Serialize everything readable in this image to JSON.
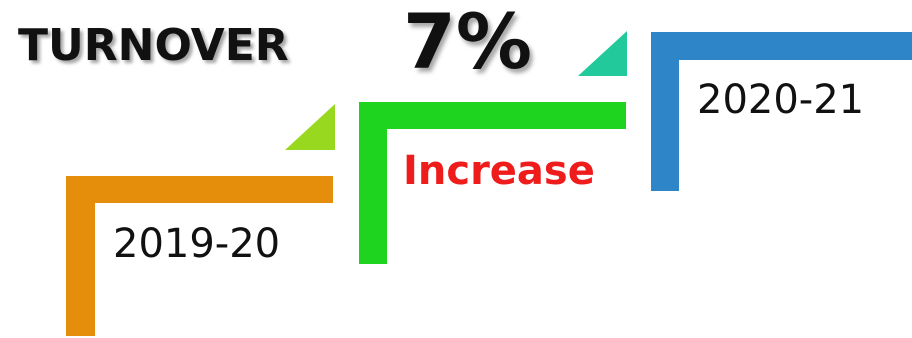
{
  "title": "TURNOVER",
  "percent": "7%",
  "increase_label": "Increase",
  "steps": [
    {
      "label": "2019-20",
      "color": "#e58e0b",
      "arrow_color": "#98d81e"
    },
    {
      "label": "",
      "color": "#1ed41e",
      "arrow_color": "#22c99a"
    },
    {
      "label": "2020-21",
      "color": "#2e86c8",
      "arrow_color": ""
    }
  ]
}
